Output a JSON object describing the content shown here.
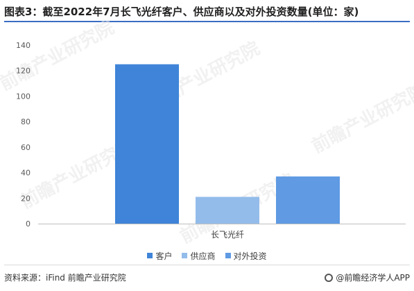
{
  "title": "图表3：截至2022年7月长飞光纤客户、供应商以及对外投资数量(单位：家)",
  "source": "资料来源：iFind 前瞻产业研究院",
  "brand": "@前瞻经济学人APP",
  "colors": {
    "accent": "#3a6cc4",
    "series": [
      "#3f84d8",
      "#93bcea",
      "#5f9ae3"
    ]
  },
  "chart_data": {
    "type": "bar",
    "categories": [
      "长飞光纤"
    ],
    "series": [
      {
        "name": "客户",
        "values": [
          125
        ]
      },
      {
        "name": "供应商",
        "values": [
          21
        ]
      },
      {
        "name": "对外投资",
        "values": [
          37
        ]
      }
    ],
    "yticks": [
      0,
      20,
      40,
      60,
      80,
      100,
      120,
      140
    ],
    "ylim": [
      0,
      140
    ],
    "legend_position": "bottom",
    "grid": false
  }
}
